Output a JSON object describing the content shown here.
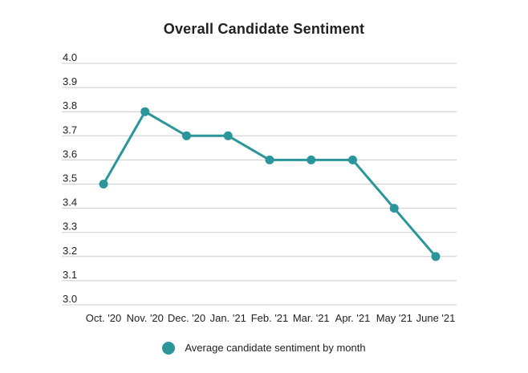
{
  "title": "Overall Candidate Sentiment",
  "legend": {
    "label": "Average candidate sentiment by month"
  },
  "colors": {
    "series": "#2a969b",
    "gridline": "#cccccc",
    "text": "#212121",
    "background": "#ffffff"
  },
  "chart_data": {
    "type": "line",
    "title": "Overall Candidate Sentiment",
    "categories": [
      "Oct. '20",
      "Nov. '20",
      "Dec. '20",
      "Jan. '21",
      "Feb. '21",
      "Mar. '21",
      "Apr. '21",
      "May '21",
      "June '21"
    ],
    "series": [
      {
        "name": "Average candidate sentiment by month",
        "values": [
          3.5,
          3.8,
          3.7,
          3.7,
          3.6,
          3.6,
          3.6,
          3.4,
          3.2
        ]
      }
    ],
    "xlabel": "",
    "ylabel": "",
    "ylim": [
      3.0,
      4.0
    ],
    "ytick_step": 0.1,
    "ytick_format": "one_decimal",
    "grid": true,
    "marker": "circle",
    "legend_position": "bottom"
  }
}
